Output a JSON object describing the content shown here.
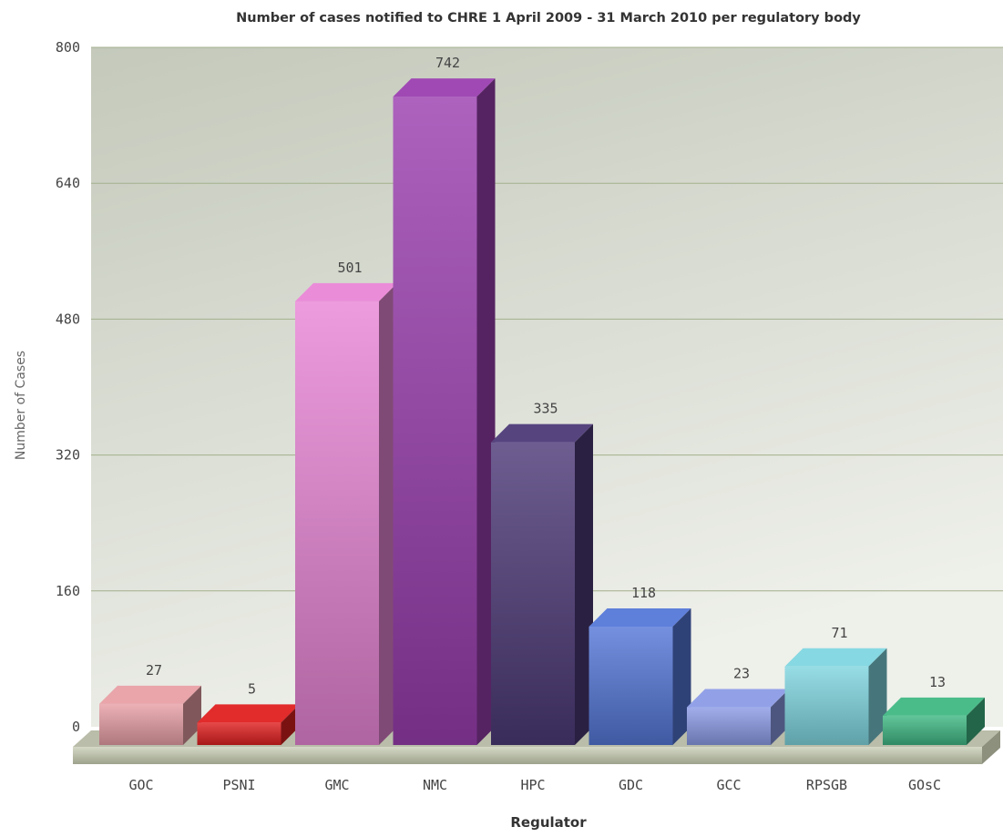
{
  "chart_data": {
    "type": "bar",
    "title": "Number of cases notified to CHRE 1 April 2009 - 31 March 2010 per regulatory body",
    "xlabel": "Regulator",
    "ylabel": "Number of Cases",
    "ylim": [
      0,
      800
    ],
    "yticks": [
      "0",
      "160",
      "320",
      "480",
      "640",
      "800"
    ],
    "categories": [
      "GOC",
      "PSNI",
      "GMC",
      "NMC",
      "HPC",
      "GDC",
      "GCC",
      "RPSGB",
      "GOsC"
    ],
    "values": [
      27,
      5,
      501,
      742,
      335,
      118,
      23,
      71,
      13
    ],
    "grid": true,
    "legend": "none",
    "colors": [
      "#e8a0a6",
      "#e02020",
      "#e986d6",
      "#9b3fb0",
      "#4d3a78",
      "#5578d8",
      "#8c9ce6",
      "#80d6e0",
      "#40b884"
    ],
    "background": {
      "top": "#c4c9bb",
      "bottom": "#eef0ea"
    },
    "grid_color": "#a3b08c"
  }
}
